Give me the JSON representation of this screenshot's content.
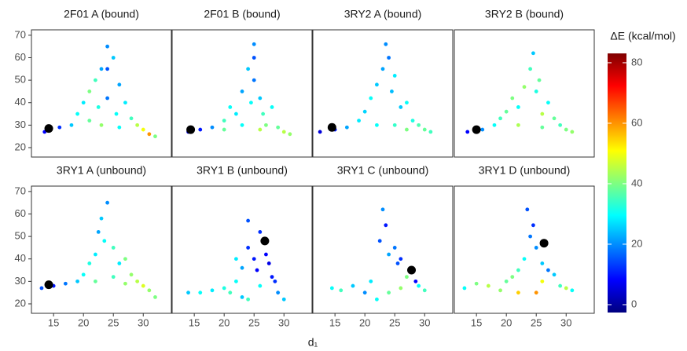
{
  "chart_data": {
    "type": "scatter",
    "xlabel": "d₁",
    "xlim": [
      11.3,
      34.7
    ],
    "xticks": [
      15,
      20,
      25,
      30
    ],
    "ylim": [
      15.8,
      72.4
    ],
    "yticks": [
      20,
      30,
      40,
      50,
      60,
      70
    ],
    "highlight_color": "#000000",
    "colorbar": {
      "title": "ΔE (kcal/mol)",
      "lim": [
        -2.6,
        83.1
      ],
      "ticks": [
        0,
        20,
        40,
        60,
        80
      ],
      "colormap": "jet"
    },
    "panels": [
      {
        "title": "2F01 A (bound)",
        "x": [
          13.5,
          16,
          18,
          19,
          20,
          21,
          22,
          22.5,
          23,
          24,
          24,
          25,
          25.5,
          26,
          27,
          28,
          29,
          30,
          31,
          32,
          21,
          23,
          26,
          24
        ],
        "y": [
          27,
          29,
          30,
          35,
          40,
          45,
          50,
          38,
          55,
          65,
          42,
          60,
          35,
          48,
          40,
          33,
          30,
          28,
          26,
          25,
          32,
          30,
          29,
          55
        ],
        "dE": [
          8,
          12,
          25,
          30,
          28,
          40,
          35,
          32,
          22,
          20,
          18,
          25,
          30,
          22,
          28,
          35,
          45,
          50,
          60,
          40,
          38,
          42,
          30,
          15
        ],
        "highlight": [
          14.2,
          28.5
        ]
      },
      {
        "title": "2F01 B (bound)",
        "x": [
          14,
          16,
          18,
          20,
          21,
          22,
          23,
          24,
          24.5,
          25,
          25,
          26,
          26.5,
          27,
          28,
          29,
          30,
          31,
          20,
          23,
          26,
          25
        ],
        "y": [
          27,
          28,
          29,
          32,
          38,
          35,
          45,
          55,
          40,
          66,
          50,
          42,
          35,
          30,
          38,
          29,
          27,
          26,
          28,
          30,
          28,
          60
        ],
        "dE": [
          5,
          10,
          20,
          35,
          30,
          28,
          22,
          25,
          30,
          20,
          18,
          25,
          35,
          40,
          30,
          38,
          45,
          42,
          38,
          30,
          45,
          15
        ],
        "highlight": [
          14.4,
          28
        ]
      },
      {
        "title": "3RY2 A (bound)",
        "x": [
          12.5,
          15,
          17,
          19,
          20,
          21,
          22,
          23,
          23.5,
          24,
          24.5,
          25,
          26,
          27,
          28,
          29,
          30,
          31,
          22,
          25,
          27
        ],
        "y": [
          27,
          28,
          29,
          32,
          36,
          42,
          48,
          55,
          66,
          60,
          45,
          52,
          38,
          40,
          32,
          30,
          28,
          27,
          30,
          30,
          28
        ],
        "dE": [
          5,
          10,
          22,
          28,
          26,
          30,
          25,
          22,
          20,
          18,
          24,
          28,
          25,
          30,
          32,
          36,
          38,
          35,
          30,
          34,
          40
        ],
        "highlight": [
          14.5,
          29
        ]
      },
      {
        "title": "3RY2 B (bound)",
        "x": [
          13.5,
          16,
          18,
          19,
          20,
          21,
          22,
          23,
          24,
          24.5,
          25,
          25.5,
          26,
          27,
          28,
          29,
          30,
          31,
          22,
          26
        ],
        "y": [
          27,
          28,
          30,
          33,
          36,
          42,
          38,
          47,
          55,
          62,
          45,
          50,
          35,
          40,
          33,
          30,
          28,
          27,
          30,
          29
        ],
        "dE": [
          8,
          20,
          30,
          35,
          38,
          40,
          30,
          42,
          35,
          25,
          32,
          38,
          45,
          30,
          38,
          35,
          40,
          42,
          44,
          38
        ],
        "highlight": [
          15,
          28
        ]
      },
      {
        "title": "3RY1 A (unbound)",
        "x": [
          13,
          15,
          17,
          19,
          20,
          21,
          22,
          22.5,
          23,
          23.5,
          24,
          25,
          26,
          27,
          28,
          29,
          30,
          31,
          32,
          22,
          25,
          27
        ],
        "y": [
          27,
          28,
          29,
          30,
          33,
          38,
          42,
          52,
          58,
          48,
          65,
          45,
          38,
          40,
          33,
          30,
          28,
          26,
          23,
          30,
          32,
          29
        ],
        "dE": [
          15,
          10,
          18,
          25,
          30,
          32,
          28,
          22,
          25,
          30,
          20,
          35,
          28,
          40,
          42,
          45,
          48,
          42,
          40,
          38,
          35,
          42
        ],
        "highlight": [
          14.2,
          28.5
        ]
      },
      {
        "title": "3RY1 B (unbound)",
        "x": [
          14,
          16,
          18,
          20,
          21,
          22,
          23,
          24,
          24,
          25,
          25.5,
          26,
          27,
          27.5,
          28,
          28.5,
          29,
          30,
          24,
          26,
          23,
          22
        ],
        "y": [
          25,
          25,
          26,
          27,
          25,
          30,
          23,
          57,
          45,
          40,
          35,
          52,
          42,
          38,
          32,
          30,
          25,
          22,
          22,
          28,
          36,
          40
        ],
        "dE": [
          25,
          30,
          28,
          32,
          35,
          30,
          25,
          15,
          12,
          10,
          8,
          12,
          8,
          6,
          10,
          12,
          20,
          25,
          35,
          30,
          22,
          28
        ],
        "highlight": [
          26.8,
          48
        ]
      },
      {
        "title": "3RY1 C (unbound)",
        "x": [
          14.5,
          16,
          18,
          20,
          21,
          22,
          22.5,
          23,
          23.5,
          24,
          25,
          25.5,
          26,
          27,
          28,
          28.5,
          29,
          30,
          24,
          26
        ],
        "y": [
          27,
          26,
          28,
          25,
          30,
          22,
          48,
          62,
          55,
          42,
          45,
          38,
          40,
          32,
          35,
          30,
          28,
          26,
          25,
          27
        ],
        "dE": [
          30,
          35,
          25,
          20,
          28,
          30,
          15,
          20,
          10,
          22,
          18,
          15,
          12,
          40,
          10,
          8,
          30,
          35,
          38,
          42
        ],
        "highlight": [
          27.8,
          35
        ]
      },
      {
        "title": "3RY1 D (unbound)",
        "x": [
          13,
          15,
          17,
          19,
          20,
          21,
          22,
          23,
          23.5,
          24,
          24.5,
          25,
          26,
          26,
          27,
          28,
          29,
          30,
          31,
          22,
          25
        ],
        "y": [
          27,
          29,
          28,
          26,
          30,
          32,
          35,
          40,
          62,
          50,
          55,
          45,
          38,
          30,
          35,
          33,
          28,
          27,
          26,
          25,
          25
        ],
        "dE": [
          30,
          40,
          45,
          42,
          38,
          40,
          35,
          30,
          15,
          18,
          12,
          20,
          25,
          50,
          18,
          25,
          35,
          45,
          30,
          55,
          60
        ],
        "highlight": [
          26.3,
          47
        ]
      }
    ]
  }
}
